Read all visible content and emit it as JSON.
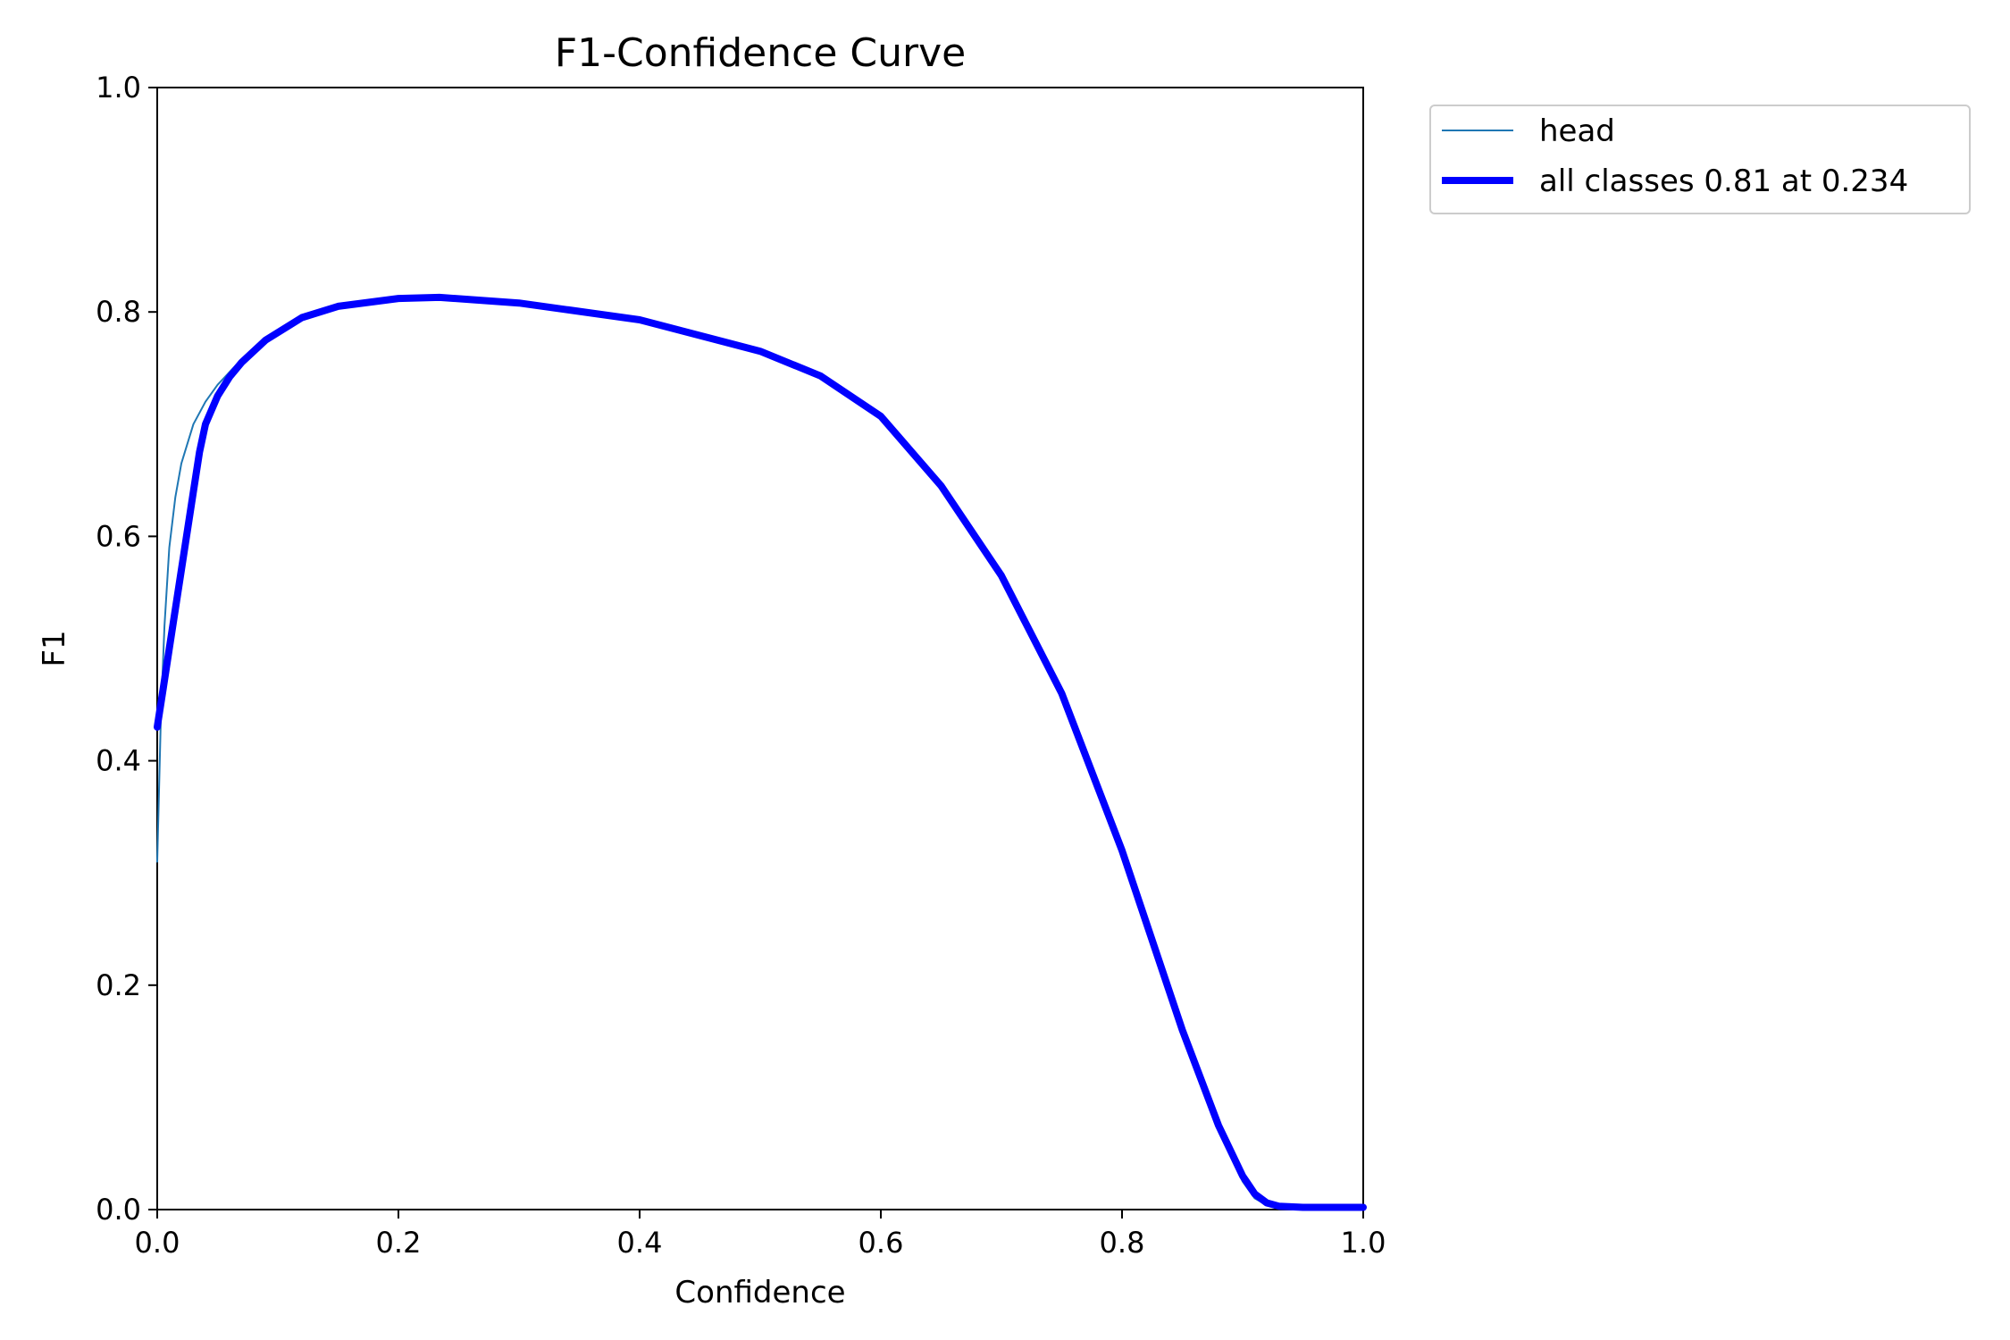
{
  "chart_data": {
    "type": "line",
    "title": "F1-Confidence Curve",
    "xlabel": "Confidence",
    "ylabel": "F1",
    "xlim": [
      0.0,
      1.0
    ],
    "ylim": [
      0.0,
      1.0
    ],
    "xticks": [
      "0.0",
      "0.2",
      "0.4",
      "0.6",
      "0.8",
      "1.0"
    ],
    "yticks": [
      "0.0",
      "0.2",
      "0.4",
      "0.6",
      "0.8",
      "1.0"
    ],
    "grid": false,
    "legend_position": "outside-top-right",
    "series": [
      {
        "name": "head",
        "color": "#1f77b4",
        "style": "thin",
        "x": [
          0.0,
          0.003,
          0.006,
          0.01,
          0.015,
          0.02,
          0.03,
          0.04,
          0.05,
          0.07,
          0.09,
          0.12,
          0.15,
          0.2,
          0.234,
          0.3,
          0.4,
          0.5,
          0.55,
          0.6,
          0.65,
          0.7,
          0.75,
          0.8,
          0.85,
          0.88,
          0.9,
          0.91,
          0.92,
          0.93,
          0.95,
          1.0
        ],
        "y": [
          0.31,
          0.44,
          0.52,
          0.59,
          0.635,
          0.665,
          0.7,
          0.72,
          0.735,
          0.758,
          0.775,
          0.795,
          0.805,
          0.812,
          0.813,
          0.808,
          0.793,
          0.765,
          0.743,
          0.707,
          0.645,
          0.565,
          0.46,
          0.32,
          0.16,
          0.07,
          0.025,
          0.01,
          0.004,
          0.002,
          0.002,
          0.002
        ]
      },
      {
        "name": "all classes 0.81 at 0.234",
        "color": "#0000ff",
        "style": "thick",
        "x": [
          0.0,
          0.005,
          0.01,
          0.02,
          0.03,
          0.035,
          0.04,
          0.05,
          0.06,
          0.07,
          0.09,
          0.12,
          0.15,
          0.2,
          0.234,
          0.3,
          0.4,
          0.5,
          0.55,
          0.6,
          0.65,
          0.7,
          0.75,
          0.8,
          0.85,
          0.88,
          0.9,
          0.91,
          0.92,
          0.93,
          0.95,
          1.0
        ],
        "y": [
          0.43,
          0.465,
          0.5,
          0.57,
          0.64,
          0.675,
          0.7,
          0.725,
          0.742,
          0.755,
          0.775,
          0.795,
          0.805,
          0.812,
          0.813,
          0.808,
          0.793,
          0.765,
          0.743,
          0.707,
          0.645,
          0.565,
          0.46,
          0.32,
          0.16,
          0.075,
          0.03,
          0.014,
          0.006,
          0.003,
          0.002,
          0.002
        ]
      }
    ]
  }
}
